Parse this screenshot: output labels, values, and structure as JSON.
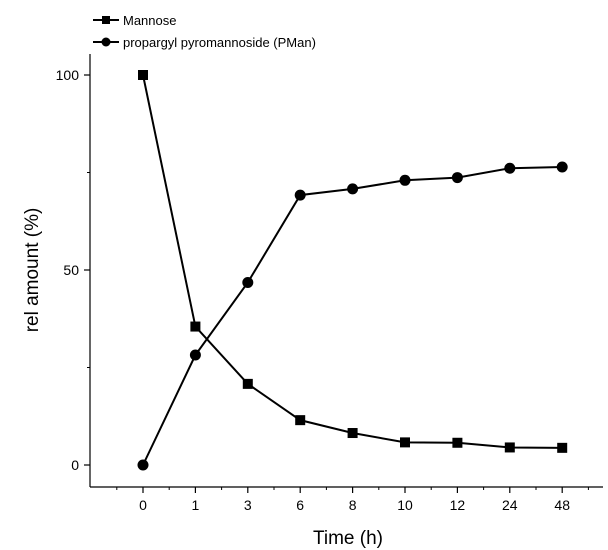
{
  "chart_data": {
    "type": "line",
    "categories": [
      "0",
      "1",
      "3",
      "6",
      "8",
      "10",
      "12",
      "24",
      "48"
    ],
    "series": [
      {
        "name": "Mannose",
        "marker": "square",
        "values": [
          100,
          35.5,
          20.8,
          11.5,
          8.2,
          5.8,
          5.7,
          4.5,
          4.4
        ]
      },
      {
        "name": "propargyl pyromannoside (PMan)",
        "marker": "circle",
        "values": [
          0,
          28.2,
          46.8,
          69.2,
          70.8,
          73.0,
          73.7,
          76.1,
          76.4
        ]
      }
    ],
    "xlabel": "Time (h)",
    "ylabel": "rel amount (%)",
    "ylim": [
      -6,
      110
    ],
    "yticks": [
      0,
      50,
      100
    ],
    "legend_position": "top-left",
    "line_color": "#000000"
  }
}
